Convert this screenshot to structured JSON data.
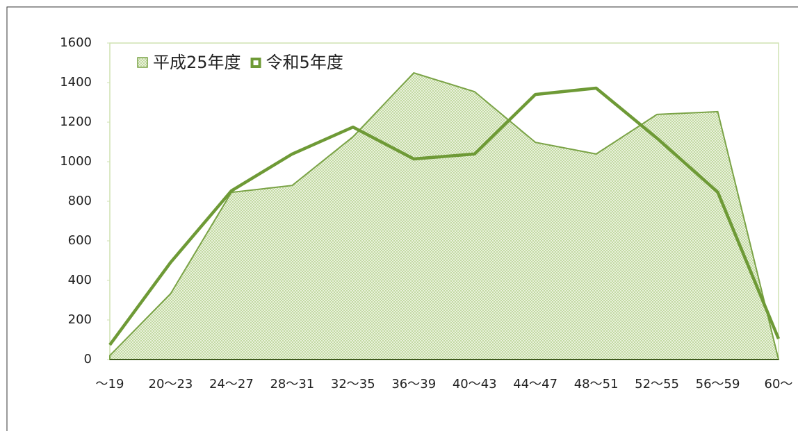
{
  "chart_data": {
    "type": "area-line",
    "categories": [
      "～19",
      "20～23",
      "24～27",
      "28～31",
      "32～35",
      "36～39",
      "40～43",
      "44～47",
      "48～51",
      "52～55",
      "56～59",
      "60～"
    ],
    "series": [
      {
        "name": "平成25年度",
        "kind": "area",
        "color": "#7aa346",
        "values": [
          20,
          333,
          845,
          880,
          1126,
          1449,
          1354,
          1098,
          1039,
          1239,
          1253,
          0
        ]
      },
      {
        "name": "令和5年度",
        "kind": "line",
        "color": "#6e9a36",
        "values": [
          74,
          491,
          853,
          1039,
          1175,
          1014,
          1039,
          1340,
          1372,
          1119,
          846,
          105
        ]
      }
    ],
    "ylim": [
      0,
      1600
    ],
    "yticks": [
      0,
      200,
      400,
      600,
      800,
      1000,
      1200,
      1400,
      1600
    ]
  }
}
